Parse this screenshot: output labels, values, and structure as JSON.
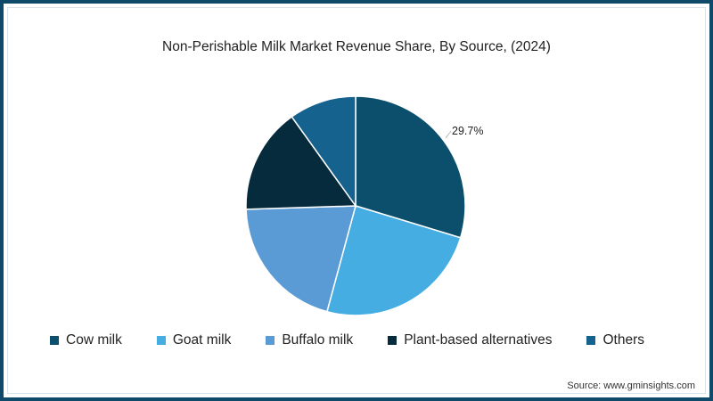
{
  "chart_data": {
    "type": "pie",
    "title": "Non-Perishable Milk Market Revenue Share, By Source, (2024)",
    "categories": [
      "Cow milk",
      "Goat milk",
      "Buffalo milk",
      "Plant-based alternatives",
      "Others"
    ],
    "values": [
      29.7,
      24.5,
      20.3,
      15.6,
      9.9
    ],
    "colors": [
      "#0b4f6c",
      "#45ade2",
      "#5b9bd5",
      "#062b3d",
      "#16628f"
    ],
    "data_labels": [
      {
        "category": "Cow milk",
        "text": "29.7%"
      }
    ],
    "legend_position": "bottom",
    "start_angle_deg": 0,
    "direction": "clockwise"
  },
  "header": {
    "title": "Non-Perishable Milk Market Revenue Share, By Source, (2024)"
  },
  "legend": {
    "items": [
      {
        "label": "Cow milk",
        "color": "#0b4f6c"
      },
      {
        "label": "Goat milk",
        "color": "#45ade2"
      },
      {
        "label": "Buffalo milk",
        "color": "#5b9bd5"
      },
      {
        "label": "Plant-based alternatives",
        "color": "#062b3d"
      },
      {
        "label": "Others",
        "color": "#16628f"
      }
    ]
  },
  "labels": {
    "cow_milk_pct": "29.7%"
  },
  "footer": {
    "source": "Source: www.gminsights.com"
  },
  "theme": {
    "frame_color": "#0f4a6b"
  }
}
